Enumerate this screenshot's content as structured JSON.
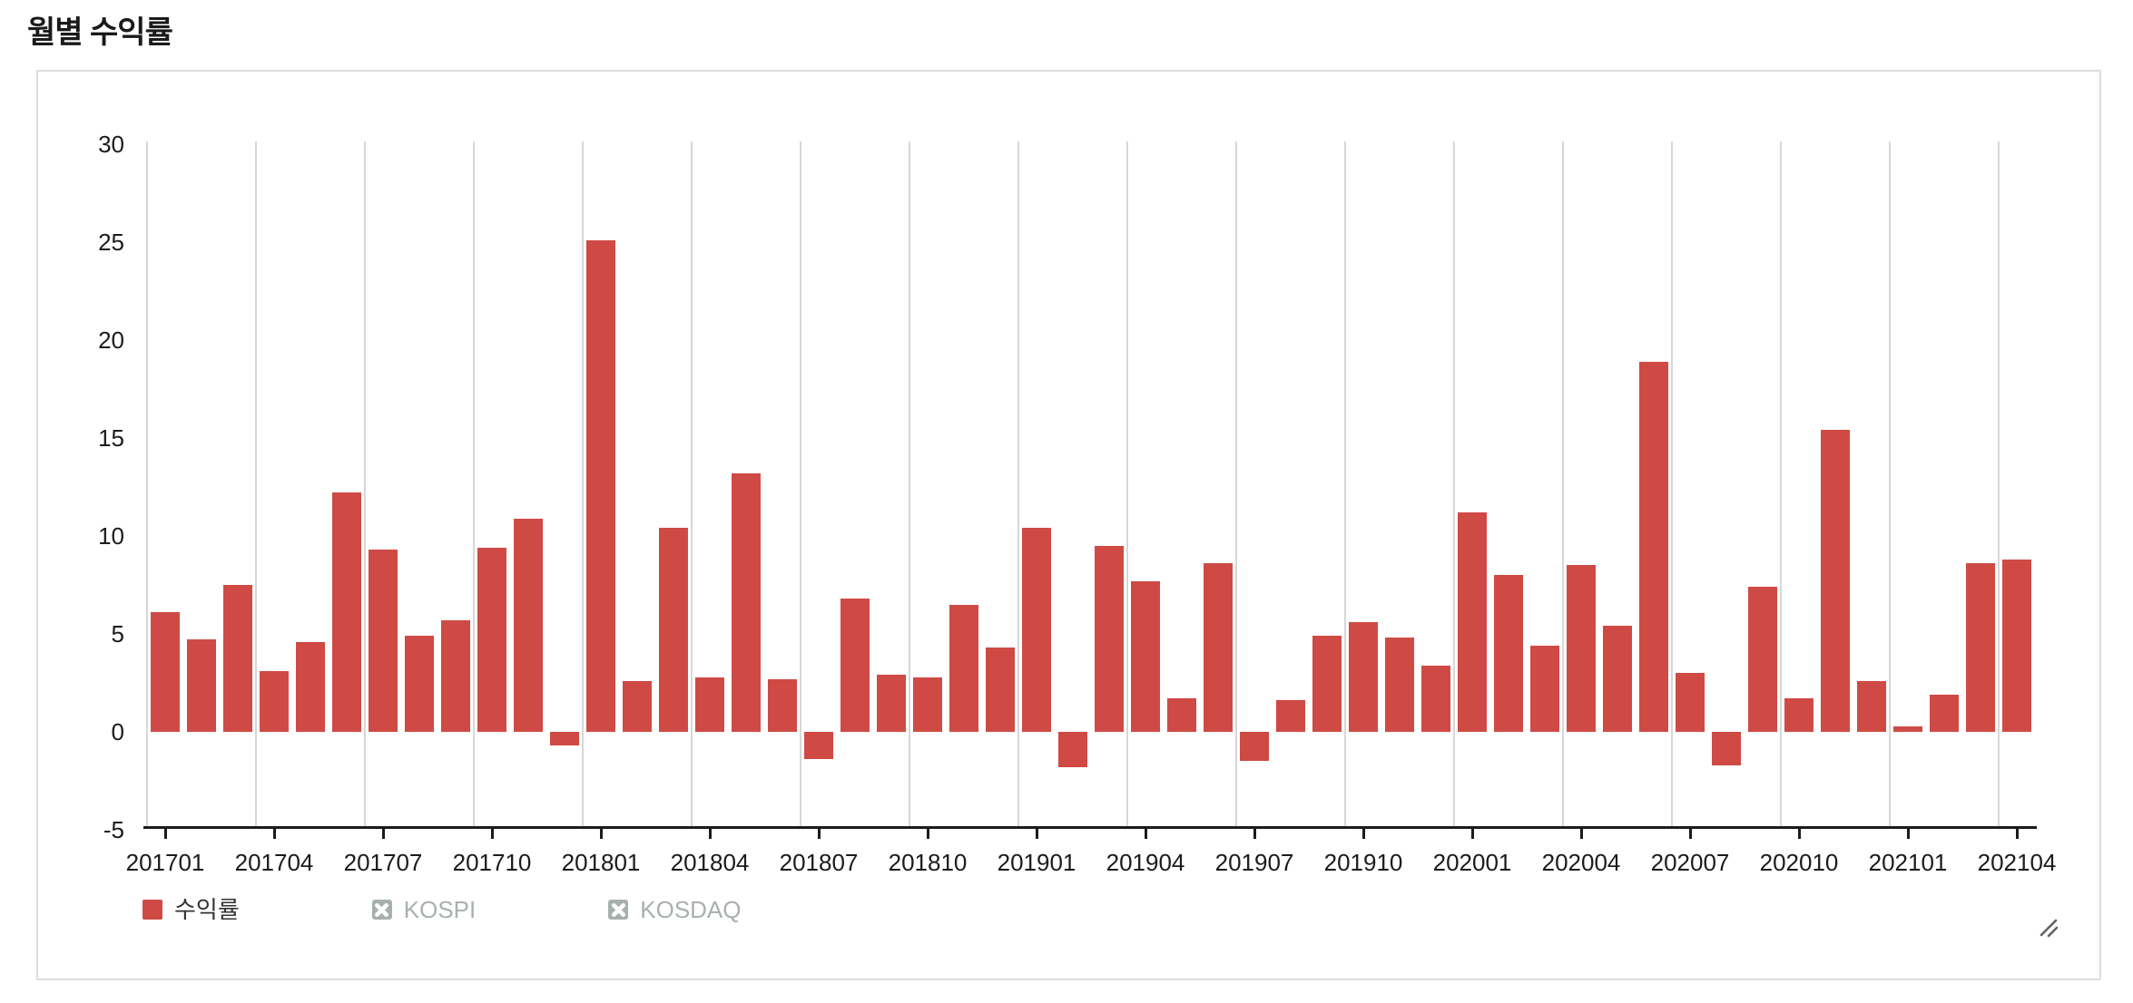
{
  "page": {
    "title": "월별 수익률"
  },
  "panel": {
    "background": "#ffffff",
    "border_color": "#dcdcdc"
  },
  "legend": {
    "items": [
      {
        "label": "수익률",
        "state": "active",
        "icon": "filled-square-swatch",
        "color": "#cf4a45"
      },
      {
        "label": "KOSPI",
        "state": "disabled",
        "icon": "x-mark-square",
        "color": "#a8afaf"
      },
      {
        "label": "KOSDAQ",
        "state": "disabled",
        "icon": "x-mark-square",
        "color": "#a8afaf"
      }
    ]
  },
  "icons": {
    "resize_handle": "resize-grip-diagonal"
  },
  "colors": {
    "bar": "#cf4a45",
    "axis": "#1b1b1b",
    "gridline": "#d7d7d7",
    "disabled_text": "#a9b0b0",
    "title_text": "#1a1a1a"
  },
  "chart_data": {
    "type": "bar",
    "title": "월별 수익률",
    "xlabel": "",
    "ylabel": "",
    "ylim": [
      -5,
      30
    ],
    "yticks": [
      30,
      25,
      20,
      15,
      10,
      5,
      0,
      -5
    ],
    "grid": "vertical-only",
    "legend_position": "bottom-left",
    "x_tick_labels": [
      "201701",
      "201704",
      "201707",
      "201710",
      "201801",
      "201804",
      "201807",
      "201810",
      "201901",
      "201904",
      "201907",
      "201910",
      "202001",
      "202004",
      "202007",
      "202010",
      "202101",
      "202104"
    ],
    "categories": [
      "201701",
      "201702",
      "201703",
      "201704",
      "201705",
      "201706",
      "201707",
      "201708",
      "201709",
      "201710",
      "201711",
      "201712",
      "201801",
      "201802",
      "201803",
      "201804",
      "201805",
      "201806",
      "201807",
      "201808",
      "201809",
      "201810",
      "201811",
      "201812",
      "201901",
      "201902",
      "201903",
      "201904",
      "201905",
      "201906",
      "201907",
      "201908",
      "201909",
      "201910",
      "201911",
      "201912",
      "202001",
      "202002",
      "202003",
      "202004",
      "202005",
      "202006",
      "202007",
      "202008",
      "202009",
      "202010",
      "202011",
      "202012",
      "202101",
      "202102",
      "202103",
      "202104"
    ],
    "series": [
      {
        "name": "수익률",
        "color": "#cf4a45",
        "values": [
          6.1,
          4.7,
          7.5,
          3.1,
          4.6,
          12.2,
          9.3,
          4.9,
          5.7,
          9.4,
          10.9,
          -0.7,
          25.1,
          2.6,
          10.4,
          2.8,
          13.2,
          2.7,
          -1.4,
          6.8,
          2.9,
          2.8,
          6.5,
          4.3,
          10.4,
          -1.8,
          9.5,
          7.7,
          1.7,
          8.6,
          -1.5,
          1.6,
          4.9,
          5.6,
          4.8,
          3.4,
          11.2,
          8.0,
          4.4,
          8.5,
          5.4,
          18.9,
          3.0,
          -1.7,
          7.4,
          1.7,
          15.4,
          2.6,
          0.3,
          1.9,
          8.6,
          8.8
        ]
      }
    ]
  }
}
